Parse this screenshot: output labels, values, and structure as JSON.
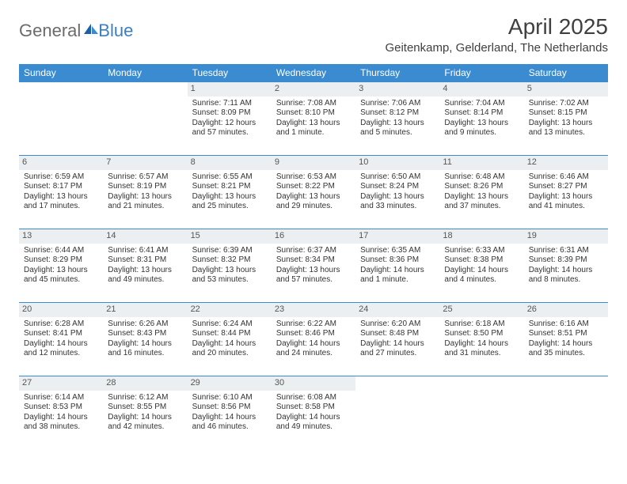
{
  "brand": {
    "part1": "General",
    "part2": "Blue"
  },
  "title": "April 2025",
  "location": "Geitenkamp, Gelderland, The Netherlands",
  "colors": {
    "header_bg": "#3a8bd0",
    "header_text": "#ffffff",
    "daynum_bg": "#eceff1",
    "border": "#3a8bd0",
    "body_text": "#333333",
    "logo_gray": "#6b6b6b",
    "logo_blue": "#3a7fc4"
  },
  "dow": [
    "Sunday",
    "Monday",
    "Tuesday",
    "Wednesday",
    "Thursday",
    "Friday",
    "Saturday"
  ],
  "weeks": [
    [
      {
        "n": "",
        "sr": "",
        "ss": "",
        "dl": ""
      },
      {
        "n": "",
        "sr": "",
        "ss": "",
        "dl": ""
      },
      {
        "n": "1",
        "sr": "Sunrise: 7:11 AM",
        "ss": "Sunset: 8:09 PM",
        "dl": "Daylight: 12 hours and 57 minutes."
      },
      {
        "n": "2",
        "sr": "Sunrise: 7:08 AM",
        "ss": "Sunset: 8:10 PM",
        "dl": "Daylight: 13 hours and 1 minute."
      },
      {
        "n": "3",
        "sr": "Sunrise: 7:06 AM",
        "ss": "Sunset: 8:12 PM",
        "dl": "Daylight: 13 hours and 5 minutes."
      },
      {
        "n": "4",
        "sr": "Sunrise: 7:04 AM",
        "ss": "Sunset: 8:14 PM",
        "dl": "Daylight: 13 hours and 9 minutes."
      },
      {
        "n": "5",
        "sr": "Sunrise: 7:02 AM",
        "ss": "Sunset: 8:15 PM",
        "dl": "Daylight: 13 hours and 13 minutes."
      }
    ],
    [
      {
        "n": "6",
        "sr": "Sunrise: 6:59 AM",
        "ss": "Sunset: 8:17 PM",
        "dl": "Daylight: 13 hours and 17 minutes."
      },
      {
        "n": "7",
        "sr": "Sunrise: 6:57 AM",
        "ss": "Sunset: 8:19 PM",
        "dl": "Daylight: 13 hours and 21 minutes."
      },
      {
        "n": "8",
        "sr": "Sunrise: 6:55 AM",
        "ss": "Sunset: 8:21 PM",
        "dl": "Daylight: 13 hours and 25 minutes."
      },
      {
        "n": "9",
        "sr": "Sunrise: 6:53 AM",
        "ss": "Sunset: 8:22 PM",
        "dl": "Daylight: 13 hours and 29 minutes."
      },
      {
        "n": "10",
        "sr": "Sunrise: 6:50 AM",
        "ss": "Sunset: 8:24 PM",
        "dl": "Daylight: 13 hours and 33 minutes."
      },
      {
        "n": "11",
        "sr": "Sunrise: 6:48 AM",
        "ss": "Sunset: 8:26 PM",
        "dl": "Daylight: 13 hours and 37 minutes."
      },
      {
        "n": "12",
        "sr": "Sunrise: 6:46 AM",
        "ss": "Sunset: 8:27 PM",
        "dl": "Daylight: 13 hours and 41 minutes."
      }
    ],
    [
      {
        "n": "13",
        "sr": "Sunrise: 6:44 AM",
        "ss": "Sunset: 8:29 PM",
        "dl": "Daylight: 13 hours and 45 minutes."
      },
      {
        "n": "14",
        "sr": "Sunrise: 6:41 AM",
        "ss": "Sunset: 8:31 PM",
        "dl": "Daylight: 13 hours and 49 minutes."
      },
      {
        "n": "15",
        "sr": "Sunrise: 6:39 AM",
        "ss": "Sunset: 8:32 PM",
        "dl": "Daylight: 13 hours and 53 minutes."
      },
      {
        "n": "16",
        "sr": "Sunrise: 6:37 AM",
        "ss": "Sunset: 8:34 PM",
        "dl": "Daylight: 13 hours and 57 minutes."
      },
      {
        "n": "17",
        "sr": "Sunrise: 6:35 AM",
        "ss": "Sunset: 8:36 PM",
        "dl": "Daylight: 14 hours and 1 minute."
      },
      {
        "n": "18",
        "sr": "Sunrise: 6:33 AM",
        "ss": "Sunset: 8:38 PM",
        "dl": "Daylight: 14 hours and 4 minutes."
      },
      {
        "n": "19",
        "sr": "Sunrise: 6:31 AM",
        "ss": "Sunset: 8:39 PM",
        "dl": "Daylight: 14 hours and 8 minutes."
      }
    ],
    [
      {
        "n": "20",
        "sr": "Sunrise: 6:28 AM",
        "ss": "Sunset: 8:41 PM",
        "dl": "Daylight: 14 hours and 12 minutes."
      },
      {
        "n": "21",
        "sr": "Sunrise: 6:26 AM",
        "ss": "Sunset: 8:43 PM",
        "dl": "Daylight: 14 hours and 16 minutes."
      },
      {
        "n": "22",
        "sr": "Sunrise: 6:24 AM",
        "ss": "Sunset: 8:44 PM",
        "dl": "Daylight: 14 hours and 20 minutes."
      },
      {
        "n": "23",
        "sr": "Sunrise: 6:22 AM",
        "ss": "Sunset: 8:46 PM",
        "dl": "Daylight: 14 hours and 24 minutes."
      },
      {
        "n": "24",
        "sr": "Sunrise: 6:20 AM",
        "ss": "Sunset: 8:48 PM",
        "dl": "Daylight: 14 hours and 27 minutes."
      },
      {
        "n": "25",
        "sr": "Sunrise: 6:18 AM",
        "ss": "Sunset: 8:50 PM",
        "dl": "Daylight: 14 hours and 31 minutes."
      },
      {
        "n": "26",
        "sr": "Sunrise: 6:16 AM",
        "ss": "Sunset: 8:51 PM",
        "dl": "Daylight: 14 hours and 35 minutes."
      }
    ],
    [
      {
        "n": "27",
        "sr": "Sunrise: 6:14 AM",
        "ss": "Sunset: 8:53 PM",
        "dl": "Daylight: 14 hours and 38 minutes."
      },
      {
        "n": "28",
        "sr": "Sunrise: 6:12 AM",
        "ss": "Sunset: 8:55 PM",
        "dl": "Daylight: 14 hours and 42 minutes."
      },
      {
        "n": "29",
        "sr": "Sunrise: 6:10 AM",
        "ss": "Sunset: 8:56 PM",
        "dl": "Daylight: 14 hours and 46 minutes."
      },
      {
        "n": "30",
        "sr": "Sunrise: 6:08 AM",
        "ss": "Sunset: 8:58 PM",
        "dl": "Daylight: 14 hours and 49 minutes."
      },
      {
        "n": "",
        "sr": "",
        "ss": "",
        "dl": ""
      },
      {
        "n": "",
        "sr": "",
        "ss": "",
        "dl": ""
      },
      {
        "n": "",
        "sr": "",
        "ss": "",
        "dl": ""
      }
    ]
  ]
}
